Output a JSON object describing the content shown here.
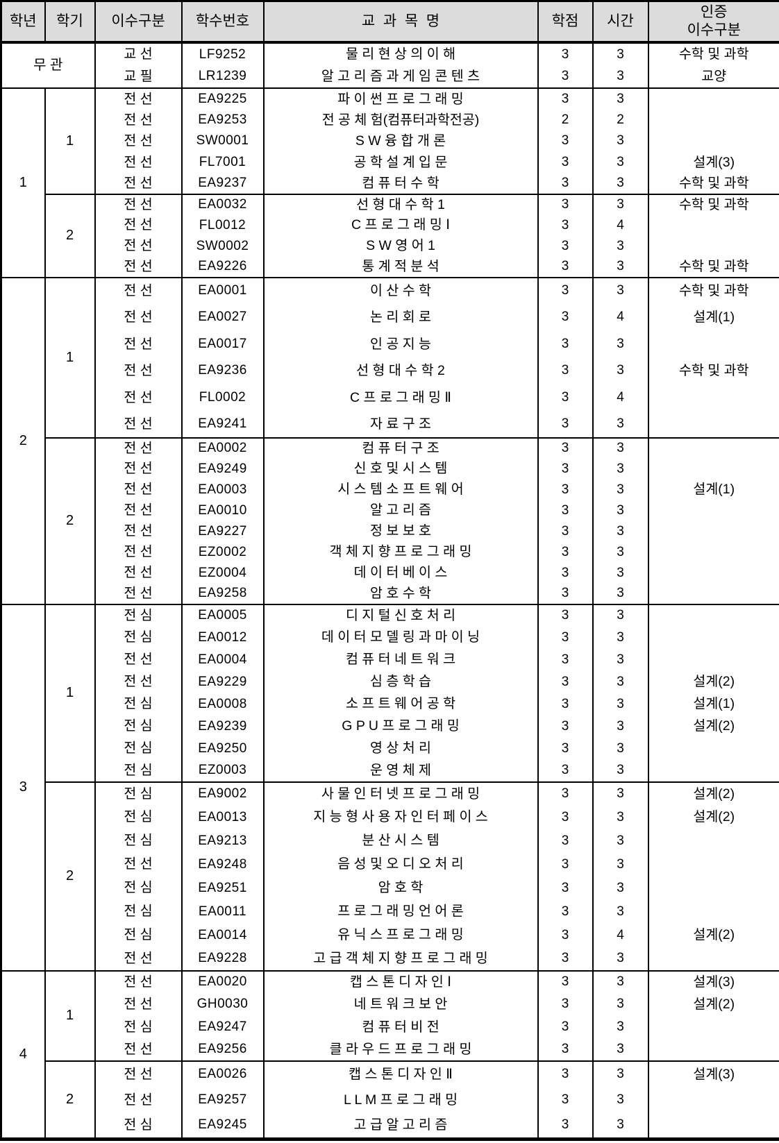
{
  "colors": {
    "header_bg": "#dcdcdc",
    "border": "#000000",
    "text": "#000000",
    "page_bg": "#ffffff"
  },
  "table": {
    "headers": {
      "year": "학년",
      "semester": "학기",
      "course_type": "이수구분",
      "course_code": "학수번호",
      "course_name": "교  과  목  명",
      "credits": "학점",
      "hours": "시간",
      "certification": "인증\n이수구분"
    },
    "groups": [
      {
        "year": "무 관",
        "merged_semester": true,
        "semesters": [
          {
            "label": "",
            "courses": [
              {
                "type": "교 선",
                "code": "LF9252",
                "name": "물 리 현 상 의 이 해",
                "credits": "3",
                "hours": "3",
                "cert": "수학 및 과학"
              },
              {
                "type": "교 필",
                "code": "LR1239",
                "name": "알 고 리 즘 과 게 임 콘 텐 츠",
                "credits": "3",
                "hours": "3",
                "cert": "교양"
              }
            ]
          }
        ]
      },
      {
        "year": "1",
        "merged_semester": false,
        "semesters": [
          {
            "label": "1",
            "courses": [
              {
                "type": "전 선",
                "code": "EA9225",
                "name": "파 이 썬 프 로 그 래 밍",
                "credits": "3",
                "hours": "3",
                "cert": ""
              },
              {
                "type": "전 선",
                "code": "EA9253",
                "name": "전 공 체 험(컴퓨터과학전공)",
                "credits": "2",
                "hours": "2",
                "cert": ""
              },
              {
                "type": "전 선",
                "code": "SW0001",
                "name": "S W 융 합 개 론",
                "credits": "3",
                "hours": "3",
                "cert": ""
              },
              {
                "type": "전 선",
                "code": "FL7001",
                "name": "공 학 설 계 입 문",
                "credits": "3",
                "hours": "3",
                "cert": "설계(3)"
              },
              {
                "type": "전 선",
                "code": "EA9237",
                "name": "컴 퓨 터 수 학",
                "credits": "3",
                "hours": "3",
                "cert": "수학 및 과학"
              }
            ]
          },
          {
            "label": "2",
            "courses": [
              {
                "type": "전 선",
                "code": "EA0032",
                "name": "선 형 대 수 학 1",
                "credits": "3",
                "hours": "3",
                "cert": "수학 및 과학"
              },
              {
                "type": "전 선",
                "code": "FL0012",
                "name": "C 프 로 그 래 밍 Ⅰ",
                "credits": "3",
                "hours": "4",
                "cert": ""
              },
              {
                "type": "전 선",
                "code": "SW0002",
                "name": "S W 영 어 1",
                "credits": "3",
                "hours": "3",
                "cert": ""
              },
              {
                "type": "전 선",
                "code": "EA9226",
                "name": "통 계 적 분 석",
                "credits": "3",
                "hours": "3",
                "cert": "수학 및 과학"
              }
            ]
          }
        ]
      },
      {
        "year": "2",
        "merged_semester": false,
        "semesters": [
          {
            "label": "1",
            "courses": [
              {
                "type": "전 선",
                "code": "EA0001",
                "name": "이 산 수 학",
                "credits": "3",
                "hours": "3",
                "cert": "수학 및 과학"
              },
              {
                "type": "전 선",
                "code": "EA0027",
                "name": "논 리 회 로",
                "credits": "3",
                "hours": "4",
                "cert": "설계(1)"
              },
              {
                "type": "전 선",
                "code": "EA0017",
                "name": "인 공 지 능",
                "credits": "3",
                "hours": "3",
                "cert": ""
              },
              {
                "type": "전 선",
                "code": "EA9236",
                "name": "선 형 대 수 학 2",
                "credits": "3",
                "hours": "3",
                "cert": "수학 및 과학"
              },
              {
                "type": "전 선",
                "code": "FL0002",
                "name": "C 프 로 그 래 밍 Ⅱ",
                "credits": "3",
                "hours": "4",
                "cert": ""
              },
              {
                "type": "전 선",
                "code": "EA9241",
                "name": "자 료 구 조",
                "credits": "3",
                "hours": "3",
                "cert": ""
              }
            ]
          },
          {
            "label": "2",
            "courses": [
              {
                "type": "전 선",
                "code": "EA0002",
                "name": "컴 퓨 터 구 조",
                "credits": "3",
                "hours": "3",
                "cert": ""
              },
              {
                "type": "전 선",
                "code": "EA9249",
                "name": "신 호 및 시 스 템",
                "credits": "3",
                "hours": "3",
                "cert": ""
              },
              {
                "type": "전 선",
                "code": "EA0003",
                "name": "시 스 템 소 프 트 웨 어",
                "credits": "3",
                "hours": "3",
                "cert": "설계(1)"
              },
              {
                "type": "전 선",
                "code": "EA0010",
                "name": "알 고 리 즘",
                "credits": "3",
                "hours": "3",
                "cert": ""
              },
              {
                "type": "전 선",
                "code": "EA9227",
                "name": "정 보 보 호",
                "credits": "3",
                "hours": "3",
                "cert": ""
              },
              {
                "type": "전 선",
                "code": "EZ0002",
                "name": "객 체 지 향 프 로 그 래 밍",
                "credits": "3",
                "hours": "3",
                "cert": ""
              },
              {
                "type": "전 선",
                "code": "EZ0004",
                "name": "데 이 터 베 이 스",
                "credits": "3",
                "hours": "3",
                "cert": ""
              },
              {
                "type": "전 선",
                "code": "EA9258",
                "name": "암 호 수 학",
                "credits": "3",
                "hours": "3",
                "cert": ""
              }
            ]
          }
        ]
      },
      {
        "year": "3",
        "merged_semester": false,
        "semesters": [
          {
            "label": "1",
            "courses": [
              {
                "type": "전 심",
                "code": "EA0005",
                "name": "디 지 털 신 호 처 리",
                "credits": "3",
                "hours": "3",
                "cert": ""
              },
              {
                "type": "전 심",
                "code": "EA0012",
                "name": "데 이 터 모 델 링 과 마 이 닝",
                "credits": "3",
                "hours": "3",
                "cert": ""
              },
              {
                "type": "전 선",
                "code": "EA0004",
                "name": "컴 퓨 터 네 트 워 크",
                "credits": "3",
                "hours": "3",
                "cert": ""
              },
              {
                "type": "전 선",
                "code": "EA9229",
                "name": "심 층 학 습",
                "credits": "3",
                "hours": "3",
                "cert": "설계(2)"
              },
              {
                "type": "전 심",
                "code": "EA0008",
                "name": "소 프 트 웨 어 공 학",
                "credits": "3",
                "hours": "3",
                "cert": "설계(1)"
              },
              {
                "type": "전 심",
                "code": "EA9239",
                "name": "G P U 프 로 그 래 밍",
                "credits": "3",
                "hours": "3",
                "cert": "설계(2)"
              },
              {
                "type": "전 심",
                "code": "EA9250",
                "name": "영 상 처 리",
                "credits": "3",
                "hours": "3",
                "cert": ""
              },
              {
                "type": "전 심",
                "code": "EZ0003",
                "name": "운 영 체 제",
                "credits": "3",
                "hours": "3",
                "cert": ""
              }
            ]
          },
          {
            "label": "2",
            "courses": [
              {
                "type": "전 심",
                "code": "EA9002",
                "name": "사 물 인 터 넷 프 로 그 래 밍",
                "credits": "3",
                "hours": "3",
                "cert": "설계(2)"
              },
              {
                "type": "전 심",
                "code": "EA0013",
                "name": "지 능 형 사 용 자 인 터 페 이 스",
                "credits": "3",
                "hours": "3",
                "cert": "설계(2)"
              },
              {
                "type": "전 심",
                "code": "EA9213",
                "name": "분 산 시 스 템",
                "credits": "3",
                "hours": "3",
                "cert": ""
              },
              {
                "type": "전 선",
                "code": "EA9248",
                "name": "음 성 및 오 디 오 처 리",
                "credits": "3",
                "hours": "3",
                "cert": ""
              },
              {
                "type": "전 심",
                "code": "EA9251",
                "name": "암 호 학",
                "credits": "3",
                "hours": "3",
                "cert": ""
              },
              {
                "type": "전 심",
                "code": "EA0011",
                "name": "프 로 그 래 밍 언 어 론",
                "credits": "3",
                "hours": "3",
                "cert": ""
              },
              {
                "type": "전 심",
                "code": "EA0014",
                "name": "유 닉 스 프 로 그 래 밍",
                "credits": "3",
                "hours": "4",
                "cert": "설계(2)"
              },
              {
                "type": "전 선",
                "code": "EA9228",
                "name": "고 급 객 체 지 향 프 로 그 래 밍",
                "credits": "3",
                "hours": "3",
                "cert": ""
              }
            ]
          }
        ]
      },
      {
        "year": "4",
        "merged_semester": false,
        "semesters": [
          {
            "label": "1",
            "courses": [
              {
                "type": "전 선",
                "code": "EA0020",
                "name": "캡 스 톤 디 자 인 Ⅰ",
                "credits": "3",
                "hours": "3",
                "cert": "설계(3)"
              },
              {
                "type": "전 선",
                "code": "GH0030",
                "name": "네 트 워 크 보 안",
                "credits": "3",
                "hours": "3",
                "cert": "설계(2)"
              },
              {
                "type": "전 심",
                "code": "EA9247",
                "name": "컴 퓨 터 비 전",
                "credits": "3",
                "hours": "3",
                "cert": ""
              },
              {
                "type": "전 선",
                "code": "EA9256",
                "name": "클 라 우 드 프 로 그 래 밍",
                "credits": "3",
                "hours": "3",
                "cert": ""
              }
            ]
          },
          {
            "label": "2",
            "courses": [
              {
                "type": "전 선",
                "code": "EA0026",
                "name": "캡 스 톤 디 자 인 Ⅱ",
                "credits": "3",
                "hours": "3",
                "cert": "설계(3)"
              },
              {
                "type": "전 선",
                "code": "EA9257",
                "name": "L L M 프 로 그 래 밍",
                "credits": "3",
                "hours": "3",
                "cert": ""
              },
              {
                "type": "전 심",
                "code": "EA9245",
                "name": "고 급 알 고 리 즘",
                "credits": "3",
                "hours": "3",
                "cert": ""
              }
            ]
          }
        ]
      }
    ]
  }
}
